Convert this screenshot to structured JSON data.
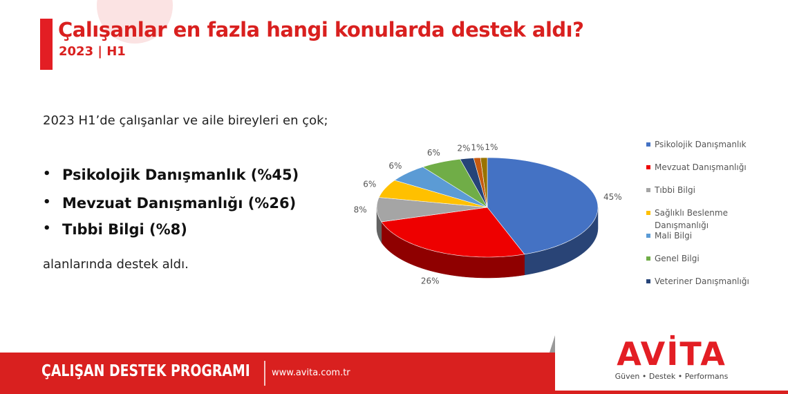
{
  "header": {
    "title": "Çalışanlar en fazla hangi konularda destek aldı?",
    "subtitle": "2023 | H1"
  },
  "body": {
    "intro": "2023 H1’de çalışanlar ve aile bireyleri en çok;",
    "bullets": [
      "Psikolojik Danışmanlık (%45)",
      "Mevzuat Danışmanlığı (%26)",
      "Tıbbi Bilgi (%8)"
    ],
    "outro": "alanlarında destek aldı."
  },
  "chart_data": {
    "type": "pie",
    "three_d": true,
    "categories": [
      "Psikolojik Danışmanlık",
      "Mevzuat Danışmanlığı",
      "Tıbbi Bilgi",
      "Sağlıklı Beslenme Danışmanlığı",
      "Mali Bilgi",
      "Genel Bilgi",
      "Veteriner Danışmanlığı",
      null,
      null
    ],
    "values": [
      45,
      26,
      8,
      6,
      6,
      6,
      2,
      1,
      1
    ],
    "value_labels": [
      "45%",
      "26%",
      "8%",
      "6%",
      "6%",
      "6%",
      "2%",
      "1%",
      "1%"
    ],
    "colors": [
      "#4472c4",
      "#ee0000",
      "#a5a5a5",
      "#ffc000",
      "#5b9bd5",
      "#70ad47",
      "#264478",
      "#c55a11",
      "#997300"
    ],
    "legend": "right"
  },
  "footer": {
    "program": "ÇALIŞAN DESTEK PROGRAMI",
    "website": "www.avita.com.tr",
    "logo": "AVİTA",
    "tagline": "Güven • Destek • Performans"
  }
}
